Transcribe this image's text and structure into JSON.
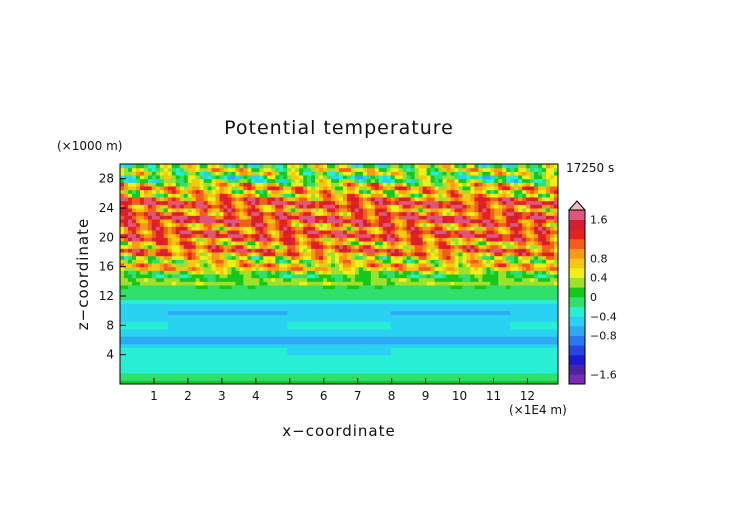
{
  "chart_data": {
    "type": "heatmap",
    "title": "Potential temperature",
    "xlabel": "x−coordinate",
    "ylabel": "z−coordinate",
    "x_unit": "(×1E4 m)",
    "y_unit": "(×1000 m)",
    "time_label": "17250 s",
    "xlim": [
      0,
      12.9
    ],
    "ylim": [
      0,
      30
    ],
    "x_ticks": [
      "1",
      "2",
      "3",
      "4",
      "5",
      "6",
      "7",
      "8",
      "9",
      "10",
      "11",
      "12"
    ],
    "y_ticks": [
      "4",
      "8",
      "12",
      "16",
      "20",
      "24",
      "28"
    ],
    "colorbar": {
      "levels": [
        -1.8,
        -1.6,
        -1.4,
        -1.2,
        -1.0,
        -0.8,
        -0.6,
        -0.4,
        -0.2,
        0,
        0.2,
        0.4,
        0.6,
        0.8,
        1.0,
        1.2,
        1.4,
        1.6,
        1.8
      ],
      "colors": [
        "#7a2bb3",
        "#4d23a6",
        "#1a1ad0",
        "#2a44e0",
        "#2a78f0",
        "#2fa8f5",
        "#2ad2f2",
        "#27efd6",
        "#31e06c",
        "#16c81e",
        "#9ee02e",
        "#eef018",
        "#f7c810",
        "#f79a14",
        "#f45e1a",
        "#e52222",
        "#d41e32",
        "#e0567a"
      ],
      "tick_labels": [
        "1.6",
        "0.8",
        "0.4",
        "0",
        "−0.4",
        "−0.8",
        "−1.6"
      ],
      "tick_values": [
        1.6,
        0.8,
        0.4,
        0,
        -0.4,
        -0.8,
        -1.6
      ],
      "extend": "max"
    },
    "field_description_points": [
      {
        "z": 2,
        "value": -0.1
      },
      {
        "z": 6,
        "value": -0.55
      },
      {
        "z": 10,
        "value": -0.45
      },
      {
        "z": 13,
        "value": -0.1
      },
      {
        "z": 16,
        "value": 0.5
      },
      {
        "z": 19,
        "value": 1.0
      },
      {
        "z": 22,
        "value": 1.2
      },
      {
        "z": 25,
        "value": 1.1
      },
      {
        "z": 28,
        "value": 0.2
      }
    ]
  }
}
